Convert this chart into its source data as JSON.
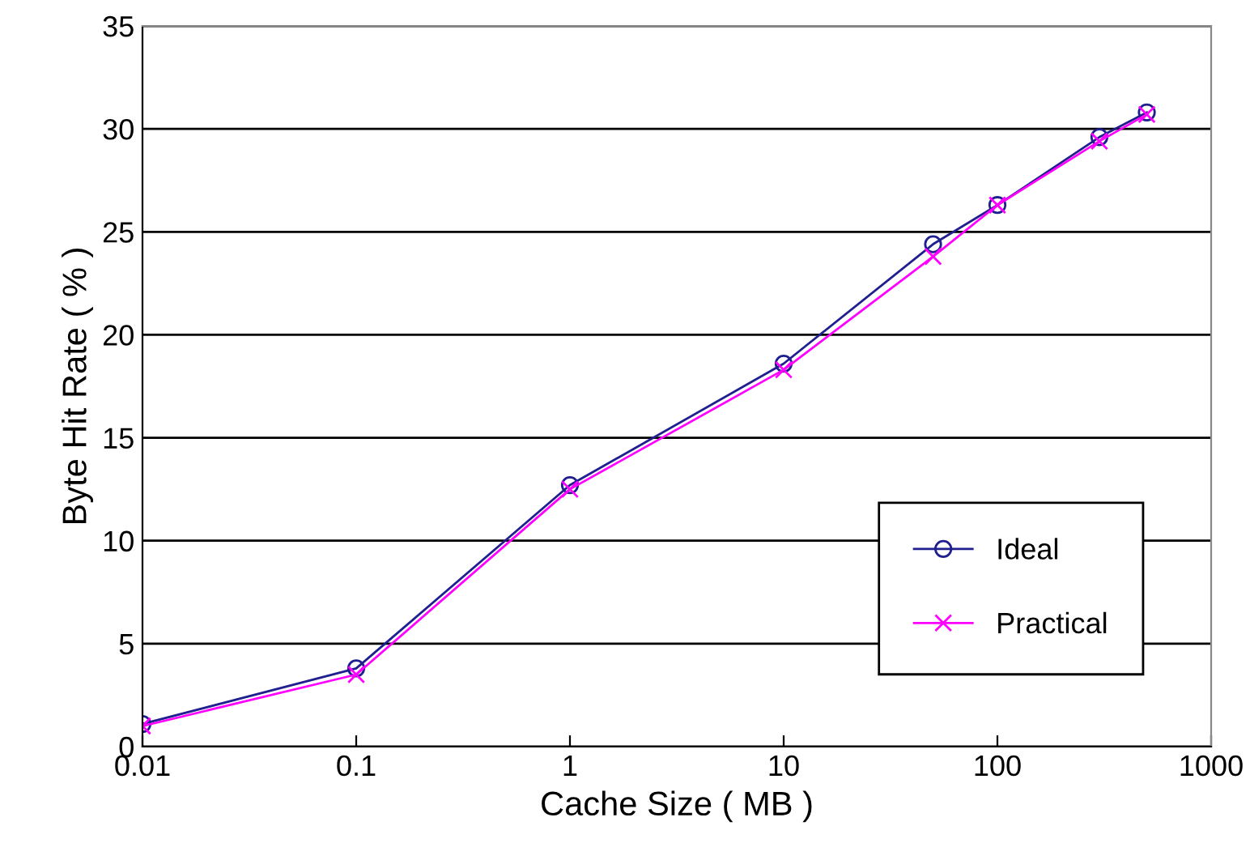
{
  "chart_data": {
    "type": "line",
    "xlabel": "Cache Size ( MB )",
    "ylabel": "Byte Hit Rate ( % )",
    "x": [
      0.01,
      0.1,
      1,
      10,
      50,
      100,
      300,
      500
    ],
    "series": [
      {
        "name": "Ideal",
        "color": "#1f1f8f",
        "marker": "circle",
        "values": [
          1.1,
          3.8,
          12.7,
          18.6,
          24.4,
          26.3,
          29.6,
          30.8
        ]
      },
      {
        "name": "Practical",
        "color": "#ff00ff",
        "marker": "cross",
        "values": [
          1.0,
          3.5,
          12.5,
          18.3,
          23.8,
          26.3,
          29.4,
          30.7
        ]
      }
    ],
    "log": "x",
    "xlim": [
      0.01,
      1000
    ],
    "xticks": [
      0.01,
      0.1,
      1,
      10,
      100,
      1000
    ],
    "ylim": [
      0,
      35
    ],
    "yticks": [
      0,
      5,
      10,
      15,
      20,
      25,
      30,
      35
    ],
    "grid": "y",
    "legend": "bottom right",
    "line_style": "solid"
  }
}
